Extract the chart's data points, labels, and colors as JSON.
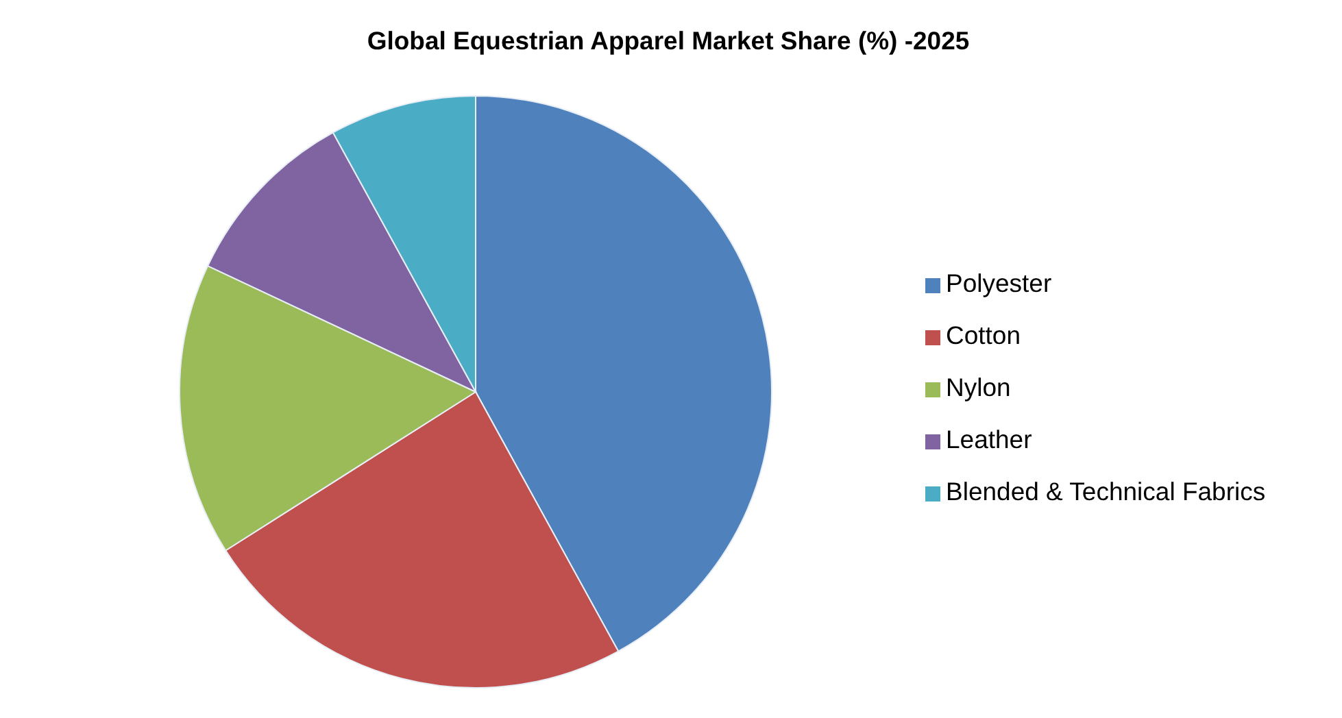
{
  "chart_data": {
    "type": "pie",
    "title": "Global Equestrian Apparel Market Share (%) -2025",
    "categories": [
      "Polyester",
      "Cotton",
      "Nylon",
      "Leather",
      "Blended & Technical Fabrics"
    ],
    "values": [
      42,
      24,
      16,
      10,
      8
    ],
    "colors": [
      "#4f81bd",
      "#c0504d",
      "#9bbb59",
      "#8064a2",
      "#4bacc6"
    ],
    "legend": "right"
  }
}
